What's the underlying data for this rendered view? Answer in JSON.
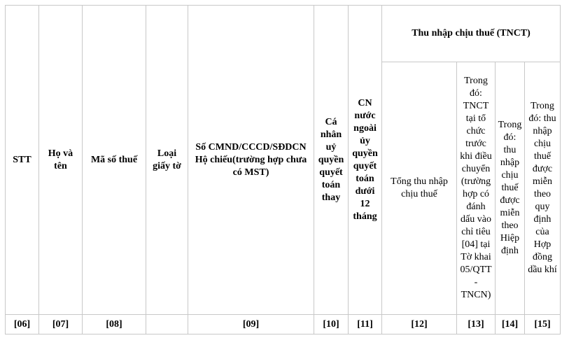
{
  "headers": {
    "stt": "STT",
    "ho_ten": "Họ và tên",
    "ma_so_thue": "Mã số thuế",
    "loai_giay_to": "Loại giấy tờ",
    "so_cmnd": "Số CMND/CCCD/SĐDCN Hộ chiếu(trường hợp chưa có MST)",
    "uy_quyen": "Cá nhân uỷ quyền quyết toán thay",
    "cn_nuoc_ngoai": "CN nước ngoài ủy quyền quyết toán dưới 12 tháng",
    "tnct_group": "Thu nhập chịu thuế (TNCT)",
    "tong_thu_nhap": "Tổng thu nhập chịu thuế",
    "tnct_dieu_chuyen": "Trong đó: TNCT tại tổ chức trước khi điều chuyển (trường hợp có đánh dấu vào chỉ tiêu [04] tại Tờ khai 05/QTT - TNCN)",
    "mien_hiep_dinh": "Trong đó: thu nhập chịu thuế được miễn theo Hiệp định",
    "mien_dau_khi": "Trong đó: thu nhập chịu thuế được miễn theo quy định của Hợp đồng dầu khí"
  },
  "codes": [
    "[06]",
    "[07]",
    "[08]",
    "",
    "[09]",
    "[10]",
    "[11]",
    "[12]",
    "[13]",
    "[14]",
    "[15]"
  ]
}
